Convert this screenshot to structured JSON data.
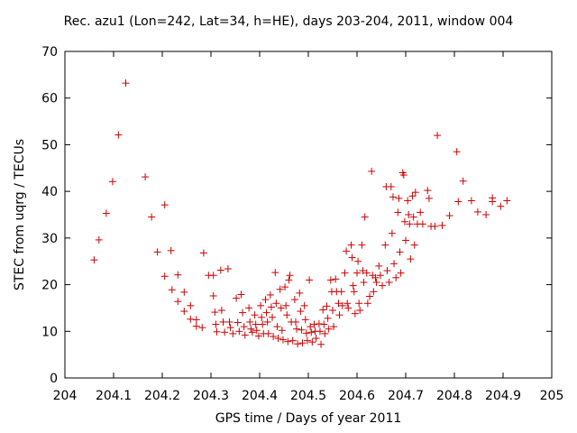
{
  "chart_data": {
    "type": "scatter",
    "title": "Rec. azu1 (Lon=242, Lat=34, h=HE), days 203-204, 2011, window 004",
    "xlabel": "GPS time / Days of year 2011",
    "ylabel": "STEC from uqrg / TECUs",
    "xlim": [
      204,
      205
    ],
    "ylim": [
      0,
      70
    ],
    "xticks": [
      "204",
      "204.1",
      "204.2",
      "204.3",
      "204.4",
      "204.5",
      "204.6",
      "204.7",
      "204.8",
      "204.9",
      "205"
    ],
    "yticks": [
      "0",
      "10",
      "20",
      "30",
      "40",
      "50",
      "60",
      "70"
    ],
    "grid": false,
    "marker": "+",
    "color": "#cc0000",
    "points": [
      [
        204.06,
        25.3
      ],
      [
        204.07,
        29.6
      ],
      [
        204.085,
        35.3
      ],
      [
        204.098,
        42.1
      ],
      [
        204.11,
        52.1
      ],
      [
        204.125,
        63.2
      ],
      [
        204.165,
        43.1
      ],
      [
        204.178,
        34.5
      ],
      [
        204.19,
        27.0
      ],
      [
        204.205,
        37.1
      ],
      [
        204.205,
        21.8
      ],
      [
        204.218,
        27.3
      ],
      [
        204.22,
        18.9
      ],
      [
        204.232,
        22.1
      ],
      [
        204.232,
        16.4
      ],
      [
        204.245,
        18.4
      ],
      [
        204.245,
        14.3
      ],
      [
        204.258,
        15.5
      ],
      [
        204.258,
        12.6
      ],
      [
        204.27,
        12.5
      ],
      [
        204.27,
        11.1
      ],
      [
        204.282,
        10.8
      ],
      [
        204.285,
        26.8
      ],
      [
        204.295,
        22.0
      ],
      [
        204.305,
        22.0
      ],
      [
        204.305,
        17.6
      ],
      [
        204.308,
        14.1
      ],
      [
        204.31,
        11.5
      ],
      [
        204.312,
        9.9
      ],
      [
        204.32,
        23.1
      ],
      [
        204.322,
        14.5
      ],
      [
        204.325,
        12.0
      ],
      [
        204.328,
        9.8
      ],
      [
        204.335,
        23.4
      ],
      [
        204.338,
        12.0
      ],
      [
        204.34,
        10.8
      ],
      [
        204.345,
        9.5
      ],
      [
        204.352,
        17.1
      ],
      [
        204.355,
        11.9
      ],
      [
        204.358,
        10.0
      ],
      [
        204.362,
        17.9
      ],
      [
        204.365,
        14.0
      ],
      [
        204.368,
        11.0
      ],
      [
        204.37,
        9.2
      ],
      [
        204.378,
        15.0
      ],
      [
        204.38,
        12.0
      ],
      [
        204.382,
        10.5
      ],
      [
        204.385,
        9.8
      ],
      [
        204.39,
        13.5
      ],
      [
        204.392,
        11.5
      ],
      [
        204.394,
        10.2
      ],
      [
        204.398,
        9.0
      ],
      [
        204.402,
        15.5
      ],
      [
        204.404,
        13.0
      ],
      [
        204.406,
        11.5
      ],
      [
        204.408,
        9.5
      ],
      [
        204.412,
        16.8
      ],
      [
        204.414,
        14.0
      ],
      [
        204.416,
        12.0
      ],
      [
        204.418,
        9.5
      ],
      [
        204.422,
        17.8
      ],
      [
        204.424,
        15.2
      ],
      [
        204.426,
        13.0
      ],
      [
        204.428,
        8.9
      ],
      [
        204.432,
        22.6
      ],
      [
        204.434,
        16.0
      ],
      [
        204.436,
        11.0
      ],
      [
        204.438,
        8.5
      ],
      [
        204.442,
        19.0
      ],
      [
        204.444,
        15.0
      ],
      [
        204.446,
        10.2
      ],
      [
        204.448,
        8.2
      ],
      [
        204.452,
        19.5
      ],
      [
        204.454,
        15.5
      ],
      [
        204.456,
        13.5
      ],
      [
        204.458,
        7.8
      ],
      [
        204.46,
        21.0
      ],
      [
        204.462,
        22.0
      ],
      [
        204.465,
        12.0
      ],
      [
        204.468,
        8.0
      ],
      [
        204.472,
        16.8
      ],
      [
        204.474,
        12.0
      ],
      [
        204.476,
        10.5
      ],
      [
        204.478,
        7.3
      ],
      [
        204.482,
        18.2
      ],
      [
        204.484,
        14.3
      ],
      [
        204.486,
        10.3
      ],
      [
        204.488,
        7.5
      ],
      [
        204.492,
        15.5
      ],
      [
        204.494,
        12.5
      ],
      [
        204.496,
        9.6
      ],
      [
        204.498,
        8.0
      ],
      [
        204.502,
        21.0
      ],
      [
        204.504,
        11.0
      ],
      [
        204.506,
        9.8
      ],
      [
        204.508,
        7.7
      ],
      [
        204.512,
        11.5
      ],
      [
        204.514,
        10.0
      ],
      [
        204.516,
        8.5
      ],
      [
        204.522,
        11.6
      ],
      [
        204.524,
        10.0
      ],
      [
        204.526,
        7.2
      ],
      [
        204.53,
        14.6
      ],
      [
        204.532,
        11.5
      ],
      [
        204.534,
        9.5
      ],
      [
        204.538,
        15.4
      ],
      [
        204.54,
        12.8
      ],
      [
        204.542,
        10.5
      ],
      [
        204.546,
        21.0
      ],
      [
        204.548,
        18.5
      ],
      [
        204.55,
        14.5
      ],
      [
        204.552,
        11.0
      ],
      [
        204.556,
        21.2
      ],
      [
        204.558,
        18.5
      ],
      [
        204.562,
        16.0
      ],
      [
        204.564,
        13.5
      ],
      [
        204.568,
        18.5
      ],
      [
        204.57,
        15.5
      ],
      [
        204.575,
        22.5
      ],
      [
        204.578,
        27.2
      ],
      [
        204.58,
        16.0
      ],
      [
        204.582,
        15.0
      ],
      [
        204.588,
        28.5
      ],
      [
        204.59,
        25.8
      ],
      [
        204.592,
        19.8
      ],
      [
        204.594,
        18.5
      ],
      [
        204.596,
        13.8
      ],
      [
        204.6,
        22.5
      ],
      [
        204.602,
        25.0
      ],
      [
        204.604,
        16.0
      ],
      [
        204.606,
        14.5
      ],
      [
        204.61,
        28.5
      ],
      [
        204.612,
        23.0
      ],
      [
        204.614,
        20.5
      ],
      [
        204.616,
        34.5
      ],
      [
        204.62,
        22.5
      ],
      [
        204.622,
        16.0
      ],
      [
        204.626,
        17.5
      ],
      [
        204.63,
        44.3
      ],
      [
        204.632,
        22.0
      ],
      [
        204.634,
        18.5
      ],
      [
        204.638,
        21.5
      ],
      [
        204.64,
        20.5
      ],
      [
        204.645,
        24.0
      ],
      [
        204.648,
        22.0
      ],
      [
        204.652,
        19.8
      ],
      [
        204.658,
        28.5
      ],
      [
        204.66,
        41.0
      ],
      [
        204.662,
        23.0
      ],
      [
        204.666,
        20.5
      ],
      [
        204.67,
        41.0
      ],
      [
        204.672,
        31.0
      ],
      [
        204.674,
        38.8
      ],
      [
        204.676,
        24.5
      ],
      [
        204.68,
        21.5
      ],
      [
        204.684,
        35.5
      ],
      [
        204.686,
        38.5
      ],
      [
        204.688,
        27.0
      ],
      [
        204.69,
        22.5
      ],
      [
        204.694,
        44.0
      ],
      [
        204.696,
        43.5
      ],
      [
        204.698,
        33.5
      ],
      [
        204.7,
        29.5
      ],
      [
        204.704,
        38.0
      ],
      [
        204.706,
        35.0
      ],
      [
        204.708,
        33.0
      ],
      [
        204.71,
        25.5
      ],
      [
        204.714,
        39.0
      ],
      [
        204.716,
        34.5
      ],
      [
        204.718,
        28.5
      ],
      [
        204.72,
        39.8
      ],
      [
        204.724,
        33.0
      ],
      [
        204.73,
        35.5
      ],
      [
        204.735,
        33.0
      ],
      [
        204.745,
        40.2
      ],
      [
        204.748,
        38.5
      ],
      [
        204.752,
        32.5
      ],
      [
        204.76,
        32.5
      ],
      [
        204.765,
        52.0
      ],
      [
        204.775,
        32.7
      ],
      [
        204.79,
        34.8
      ],
      [
        204.805,
        48.5
      ],
      [
        204.808,
        37.8
      ],
      [
        204.818,
        42.2
      ],
      [
        204.835,
        38.0
      ],
      [
        204.848,
        35.6
      ],
      [
        204.865,
        35.0
      ],
      [
        204.878,
        38.6
      ],
      [
        204.878,
        37.8
      ],
      [
        204.895,
        36.8
      ],
      [
        204.908,
        38.0
      ]
    ]
  }
}
